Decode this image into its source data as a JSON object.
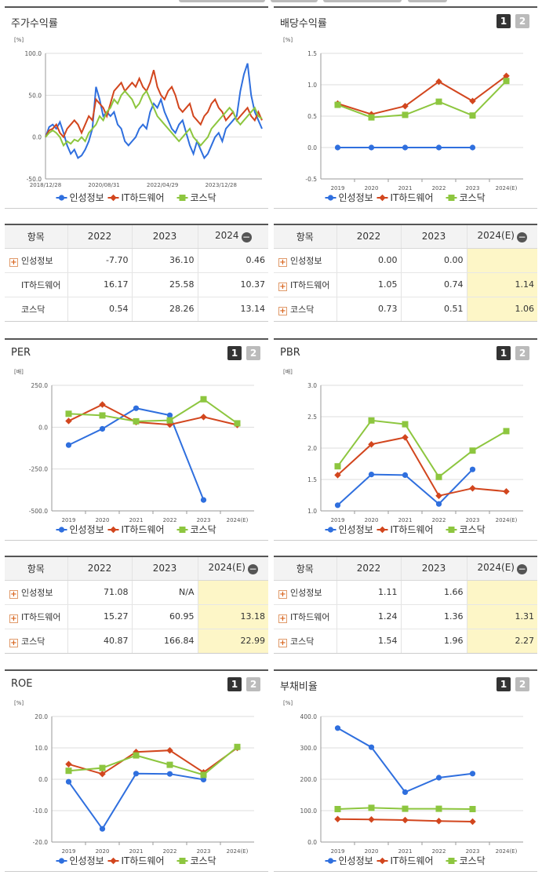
{
  "colors": {
    "blue": "#2f6fde",
    "red": "#d2461e",
    "green": "#8dc63f",
    "axis": "#999",
    "grid": "#ddd"
  },
  "legend": [
    "인성정보",
    "IT하드웨어",
    "코스닥"
  ],
  "stock_return": {
    "title": "주가수익률",
    "chart_data": {
      "type": "line",
      "title": "주가수익률",
      "ylabel": "[%]",
      "ylim": [
        -50,
        100
      ],
      "yticks": [
        "100.0",
        "50.0",
        "0.0",
        "-50.0"
      ],
      "xticks": [
        "2018/12/28",
        "2020/08/31",
        "2022/04/29",
        "2023/12/28"
      ],
      "series": [
        {
          "name": "인성정보",
          "values": [
            0,
            12,
            15,
            10,
            18,
            5,
            -10,
            -20,
            -15,
            -25,
            -22,
            -15,
            -5,
            10,
            60,
            45,
            25,
            30,
            25,
            30,
            15,
            10,
            -5,
            -10,
            -5,
            0,
            10,
            15,
            10,
            30,
            40,
            35,
            45,
            30,
            20,
            10,
            5,
            15,
            20,
            5,
            -10,
            -20,
            -5,
            -15,
            -25,
            -20,
            -10,
            0,
            5,
            -5,
            10,
            15,
            20,
            25,
            55,
            75,
            88,
            50,
            30,
            20,
            10
          ]
        },
        {
          "name": "IT하드웨어",
          "values": [
            0,
            8,
            10,
            15,
            5,
            0,
            10,
            15,
            20,
            15,
            5,
            15,
            25,
            20,
            45,
            40,
            35,
            25,
            40,
            55,
            60,
            65,
            55,
            60,
            65,
            60,
            70,
            60,
            55,
            65,
            80,
            60,
            50,
            45,
            55,
            60,
            50,
            35,
            30,
            35,
            40,
            25,
            20,
            15,
            25,
            30,
            40,
            45,
            35,
            30,
            20,
            25,
            30,
            20,
            25,
            30,
            35,
            25,
            20,
            30,
            20
          ]
        },
        {
          "name": "코스닥",
          "values": [
            0,
            5,
            8,
            5,
            0,
            -10,
            -5,
            -8,
            -3,
            -5,
            0,
            -5,
            5,
            10,
            15,
            25,
            20,
            30,
            35,
            45,
            40,
            50,
            55,
            50,
            45,
            35,
            40,
            50,
            55,
            45,
            35,
            25,
            20,
            15,
            10,
            5,
            0,
            -5,
            0,
            5,
            10,
            0,
            -5,
            -10,
            -5,
            0,
            10,
            15,
            20,
            25,
            30,
            35,
            30,
            20,
            15,
            20,
            25,
            30,
            35,
            25,
            22
          ]
        }
      ]
    }
  },
  "dividend_yield": {
    "title": "배당수익률",
    "pager": [
      "1",
      "2"
    ],
    "chart_data": {
      "type": "line",
      "title": "배당수익률",
      "ylabel": "[%]",
      "ylim": [
        -0.5,
        1.5
      ],
      "yticks": [
        "1.5",
        "1.0",
        "0.5",
        "0.0",
        "-0.5"
      ],
      "categories": [
        "2019",
        "2020",
        "2021",
        "2022",
        "2023",
        "2024(E)"
      ],
      "series": [
        {
          "name": "인성정보",
          "values": [
            0.0,
            0.0,
            0.0,
            0.0,
            0.0,
            null
          ]
        },
        {
          "name": "IT하드웨어",
          "values": [
            0.7,
            0.53,
            0.66,
            1.05,
            0.74,
            1.14
          ]
        },
        {
          "name": "코스닥",
          "values": [
            0.68,
            0.48,
            0.52,
            0.73,
            0.51,
            1.06
          ]
        }
      ]
    }
  },
  "table_stock": {
    "headers": [
      "항목",
      "2022",
      "2023",
      "2024"
    ],
    "rows": [
      {
        "name": "인성정보",
        "plus": true,
        "values": [
          "-7.70",
          "36.10",
          "0.46"
        ]
      },
      {
        "name": "IT하드웨어",
        "plus": false,
        "values": [
          "16.17",
          "25.58",
          "10.37"
        ]
      },
      {
        "name": "코스닥",
        "plus": false,
        "values": [
          "0.54",
          "28.26",
          "13.14"
        ]
      }
    ]
  },
  "table_dividend": {
    "headers": [
      "항목",
      "2022",
      "2023",
      "2024(E)"
    ],
    "rows": [
      {
        "name": "인성정보",
        "plus": true,
        "values": [
          "0.00",
          "0.00",
          ""
        ]
      },
      {
        "name": "IT하드웨어",
        "plus": true,
        "values": [
          "1.05",
          "0.74",
          "1.14"
        ]
      },
      {
        "name": "코스닥",
        "plus": true,
        "values": [
          "0.73",
          "0.51",
          "1.06"
        ]
      }
    ]
  },
  "per": {
    "title": "PER",
    "pager": [
      "1",
      "2"
    ],
    "chart_data": {
      "type": "line",
      "title": "PER",
      "ylabel": "[배]",
      "ylim": [
        -500,
        250
      ],
      "yticks": [
        "250.0",
        "0.0",
        "-250.0",
        "-500.0"
      ],
      "categories": [
        "2019",
        "2020",
        "2021",
        "2022",
        "2023",
        "2024(E)"
      ],
      "series": [
        {
          "name": "인성정보",
          "values": [
            -107,
            -10,
            113,
            71.08,
            -435,
            null
          ]
        },
        {
          "name": "IT하드웨어",
          "values": [
            37,
            135,
            30,
            15.27,
            60.95,
            13.18
          ]
        },
        {
          "name": "코스닥",
          "values": [
            80,
            70,
            35,
            40.87,
            166.84,
            22.99
          ]
        }
      ]
    }
  },
  "pbr": {
    "title": "PBR",
    "pager": [
      "1",
      "2"
    ],
    "chart_data": {
      "type": "line",
      "title": "PBR",
      "ylabel": "[배]",
      "ylim": [
        1.0,
        3.0
      ],
      "yticks": [
        "3.0",
        "2.5",
        "2.0",
        "1.5",
        "1.0"
      ],
      "categories": [
        "2019",
        "2020",
        "2021",
        "2022",
        "2023",
        "2024(E)"
      ],
      "series": [
        {
          "name": "인성정보",
          "values": [
            1.09,
            1.58,
            1.57,
            1.11,
            1.66,
            null
          ]
        },
        {
          "name": "IT하드웨어",
          "values": [
            1.57,
            2.06,
            2.17,
            1.24,
            1.36,
            1.31
          ]
        },
        {
          "name": "코스닥",
          "values": [
            1.71,
            2.44,
            2.38,
            1.54,
            1.96,
            2.27
          ]
        }
      ]
    }
  },
  "table_per": {
    "headers": [
      "항목",
      "2022",
      "2023",
      "2024(E)"
    ],
    "rows": [
      {
        "name": "인성정보",
        "plus": true,
        "values": [
          "71.08",
          "N/A",
          ""
        ]
      },
      {
        "name": "IT하드웨어",
        "plus": true,
        "values": [
          "15.27",
          "60.95",
          "13.18"
        ]
      },
      {
        "name": "코스닥",
        "plus": true,
        "values": [
          "40.87",
          "166.84",
          "22.99"
        ]
      }
    ]
  },
  "table_pbr": {
    "headers": [
      "항목",
      "2022",
      "2023",
      "2024(E)"
    ],
    "rows": [
      {
        "name": "인성정보",
        "plus": true,
        "values": [
          "1.11",
          "1.66",
          ""
        ]
      },
      {
        "name": "IT하드웨어",
        "plus": true,
        "values": [
          "1.24",
          "1.36",
          "1.31"
        ]
      },
      {
        "name": "코스닥",
        "plus": true,
        "values": [
          "1.54",
          "1.96",
          "2.27"
        ]
      }
    ]
  },
  "roe": {
    "title": "ROE",
    "pager": [
      "1",
      "2"
    ],
    "chart_data": {
      "type": "line",
      "title": "ROE",
      "ylabel": "[%]",
      "ylim": [
        -20,
        20
      ],
      "yticks": [
        "20.0",
        "10.0",
        "0.0",
        "-10.0",
        "-20.0"
      ],
      "categories": [
        "2019",
        "2020",
        "2021",
        "2022",
        "2023",
        "2024(E)"
      ],
      "series": [
        {
          "name": "인성정보",
          "values": [
            -0.8,
            -15.8,
            1.8,
            1.7,
            -0.1,
            null
          ]
        },
        {
          "name": "IT하드웨어",
          "values": [
            4.8,
            1.7,
            8.7,
            9.2,
            2.2,
            10.0
          ]
        },
        {
          "name": "코스닥",
          "values": [
            2.7,
            3.6,
            7.6,
            4.6,
            1.4,
            10.3
          ]
        }
      ]
    }
  },
  "debt_ratio": {
    "title": "부채비율",
    "pager": [
      "1",
      "2"
    ],
    "chart_data": {
      "type": "line",
      "title": "부채비율",
      "ylabel": "[%]",
      "ylim": [
        0,
        400
      ],
      "yticks": [
        "400.0",
        "300.0",
        "200.0",
        "100.0",
        "0.0"
      ],
      "categories": [
        "2019",
        "2020",
        "2021",
        "2022",
        "2023",
        "2024(E)"
      ],
      "series": [
        {
          "name": "인성정보",
          "values": [
            363,
            302,
            159,
            205,
            218,
            null
          ]
        },
        {
          "name": "IT하드웨어",
          "values": [
            73,
            72,
            70,
            67,
            65,
            null
          ]
        },
        {
          "name": "코스닥",
          "values": [
            105,
            109,
            106,
            106,
            105,
            null
          ]
        }
      ]
    }
  }
}
